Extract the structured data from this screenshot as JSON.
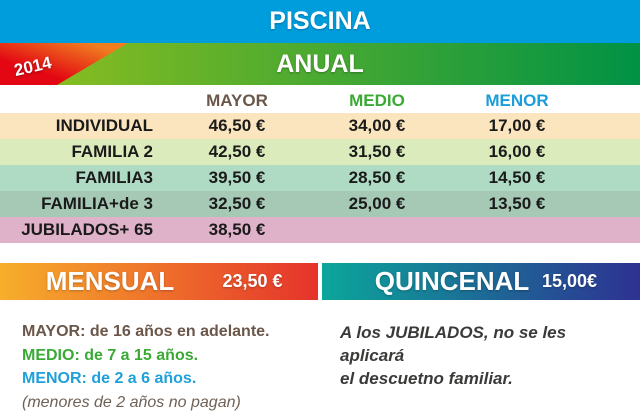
{
  "header": {
    "title": "PISCINA",
    "bg_color": "#009DDC"
  },
  "anual": {
    "label": "ANUAL",
    "year": "2014",
    "gradient_left": "#93C01D",
    "gradient_right": "#009245",
    "ribbon_red": "#E30613",
    "ribbon_orange": "#F07E1F"
  },
  "table": {
    "col_headers": [
      {
        "label": "MAYOR",
        "color": "#6B574A"
      },
      {
        "label": "MEDIO",
        "color": "#3AAA35"
      },
      {
        "label": "MENOR",
        "color": "#1B9DD9"
      }
    ],
    "rows": [
      {
        "label": "INDIVIDUAL",
        "mayor": "46,50 €",
        "medio": "34,00 €",
        "menor": "17,00 €",
        "bg": "#FBE5BE"
      },
      {
        "label": "FAMILIA 2",
        "mayor": "42,50 €",
        "medio": "31,50 €",
        "menor": "16,00 €",
        "bg": "#DCEBBB"
      },
      {
        "label": "FAMILIA3",
        "mayor": "39,50 €",
        "medio": "28,50 €",
        "menor": "14,50 €",
        "bg": "#AFDAC4"
      },
      {
        "label": "FAMILIA+de 3",
        "mayor": "32,50 €",
        "medio": "25,00 €",
        "menor": "13,50 €",
        "bg": "#A6C9B6"
      },
      {
        "label": "JUBILADOS+ 65",
        "mayor": "38,50 €",
        "medio": "",
        "menor": "",
        "bg": "#DFB2CA"
      }
    ]
  },
  "period_bars": {
    "mensual": {
      "label": "MENSUAL",
      "price": "23,50 €",
      "gradient_left": "#F7AE2B",
      "gradient_right": "#E5332B"
    },
    "quincenal": {
      "label": "QUINCENAL",
      "price": "15,00€",
      "gradient_left": "#0BA69B",
      "gradient_right": "#2E3192"
    }
  },
  "footnotes": {
    "left": [
      {
        "text": "MAYOR: de 16 años en adelante.",
        "color": "#6B574A"
      },
      {
        "text": "MEDIO: de 7 a 15 años.",
        "color": "#3AAA35"
      },
      {
        "text": "MENOR: de 2 a 6 años.",
        "color": "#1FA0DB"
      },
      {
        "text": "(menores de 2 años no pagan)",
        "color": "#6F6156"
      }
    ],
    "right": {
      "line1": "A los JUBILADOS, no se les aplicará",
      "line2": "el descuetno familiar."
    }
  }
}
